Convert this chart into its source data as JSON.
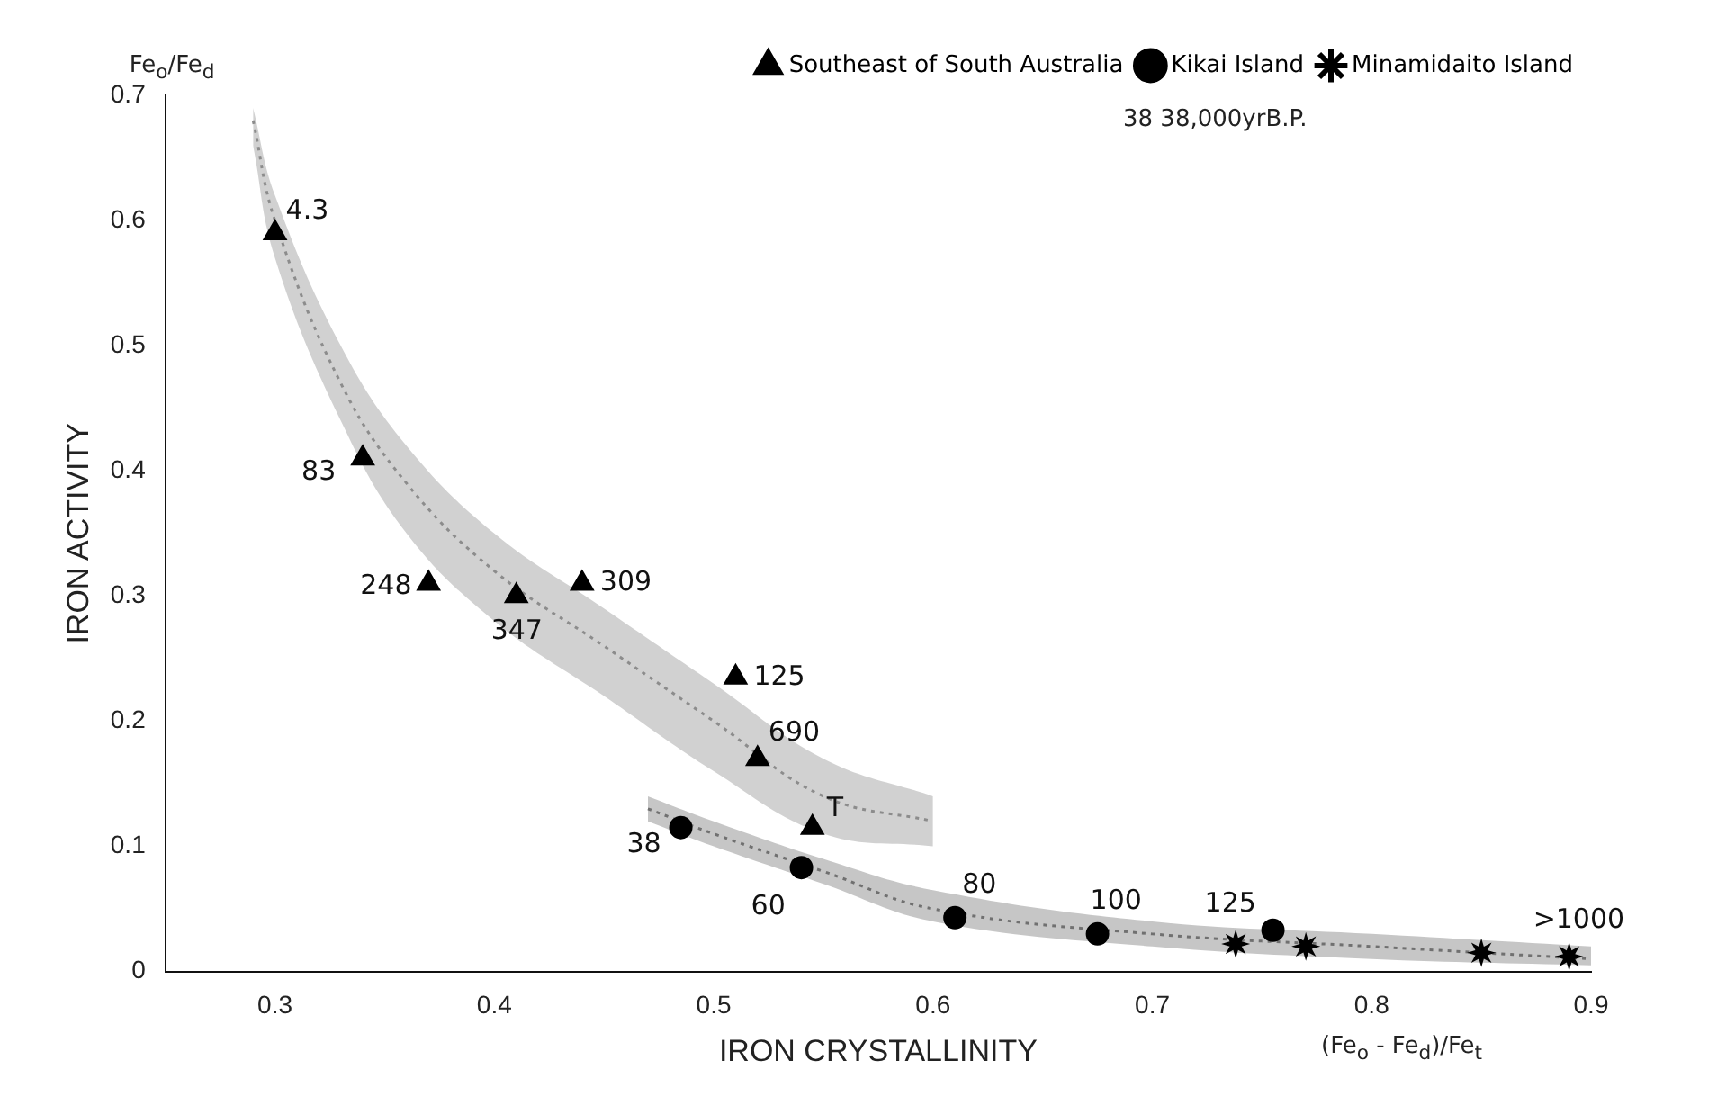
{
  "chart_data": {
    "type": "scatter",
    "xlabel": "IRON CRYSTALLINITY",
    "ylabel": "IRON ACTIVITY",
    "annotations": [
      "Fe$_{o}$/Fe$_{d}$",
      "(Fe$_{o}$ - Fe$_{d}$)/Fe$_{t}$",
      "38   38,000yrB.P.",
      {
        "text": "4.3",
        "x": 0.3,
        "y": 0.59
      },
      {
        "text": "83",
        "x": 0.34,
        "y": 0.41
      },
      {
        "text": "248",
        "x": 0.37,
        "y": 0.31
      },
      {
        "text": "347",
        "x": 0.41,
        "y": 0.3
      },
      {
        "text": "309",
        "x": 0.44,
        "y": 0.31
      },
      {
        "text": "125",
        "x": 0.51,
        "y": 0.235
      },
      {
        "text": "690",
        "x": 0.52,
        "y": 0.17
      },
      {
        "text": "T",
        "x": 0.545,
        "y": 0.115
      },
      {
        "text": "38",
        "x": 0.485,
        "y": 0.115
      },
      {
        "text": "60",
        "x": 0.54,
        "y": 0.083
      },
      {
        "text": "80",
        "x": 0.61,
        "y": 0.043
      },
      {
        "text": "100",
        "x": 0.675,
        "y": 0.03
      },
      {
        "text": "125",
        "x": 0.755,
        "y": 0.033
      },
      {
        "text": ">1000",
        "x": 0.89,
        "y": 0.012
      }
    ],
    "xlim": [
      0.25,
      0.9
    ],
    "xticks": [
      0.3,
      0.4,
      0.5,
      0.6,
      0.7,
      0.8,
      0.9
    ],
    "ylim": [
      0,
      0.7
    ],
    "yticks": [
      0,
      0.1,
      0.2,
      0.3,
      0.4,
      0.5,
      0.6,
      0.7
    ],
    "grid": false,
    "legend": "top right",
    "series": [
      {
        "type": "line",
        "color": "#8c8c8c",
        "line_style": "dotted",
        "x": [
          0.29,
          0.3,
          0.33,
          0.36,
          0.4,
          0.45,
          0.5,
          0.55,
          0.6
        ],
        "values": [
          0.68,
          0.6,
          0.47,
          0.39,
          0.32,
          0.26,
          0.2,
          0.14,
          0.12
        ],
        "lower": [
          0.66,
          0.57,
          0.44,
          0.35,
          0.28,
          0.22,
          0.16,
          0.11,
          0.1
        ],
        "upper": [
          0.69,
          0.62,
          0.5,
          0.42,
          0.35,
          0.29,
          0.23,
          0.17,
          0.14
        ]
      },
      {
        "type": "line",
        "color": "#707070",
        "line_style": "dotted",
        "x": [
          0.47,
          0.5,
          0.55,
          0.6,
          0.7,
          0.8,
          0.9
        ],
        "values": [
          0.13,
          0.11,
          0.08,
          0.05,
          0.03,
          0.02,
          0.01
        ],
        "lower": [
          0.12,
          0.1,
          0.07,
          0.04,
          0.02,
          0.01,
          0.005
        ],
        "upper": [
          0.14,
          0.12,
          0.09,
          0.065,
          0.04,
          0.03,
          0.02
        ]
      },
      {
        "name": "Southeast of South Australia",
        "color": "#000000",
        "marker": "triangle",
        "x": [
          0.3,
          0.34,
          0.37,
          0.41,
          0.44,
          0.51,
          0.52,
          0.545
        ],
        "values": [
          0.59,
          0.41,
          0.31,
          0.3,
          0.31,
          0.235,
          0.17,
          0.115
        ]
      },
      {
        "name": "Kikai Island",
        "color": "#000000",
        "marker": "circle",
        "x": [
          0.485,
          0.54,
          0.61,
          0.675,
          0.755
        ],
        "values": [
          0.115,
          0.083,
          0.043,
          0.03,
          0.033
        ]
      },
      {
        "name": "Minamidaito Island",
        "color": "#000000",
        "marker": "star",
        "x": [
          0.738,
          0.77,
          0.85,
          0.89
        ],
        "values": [
          0.022,
          0.02,
          0.015,
          0.012
        ]
      }
    ]
  }
}
